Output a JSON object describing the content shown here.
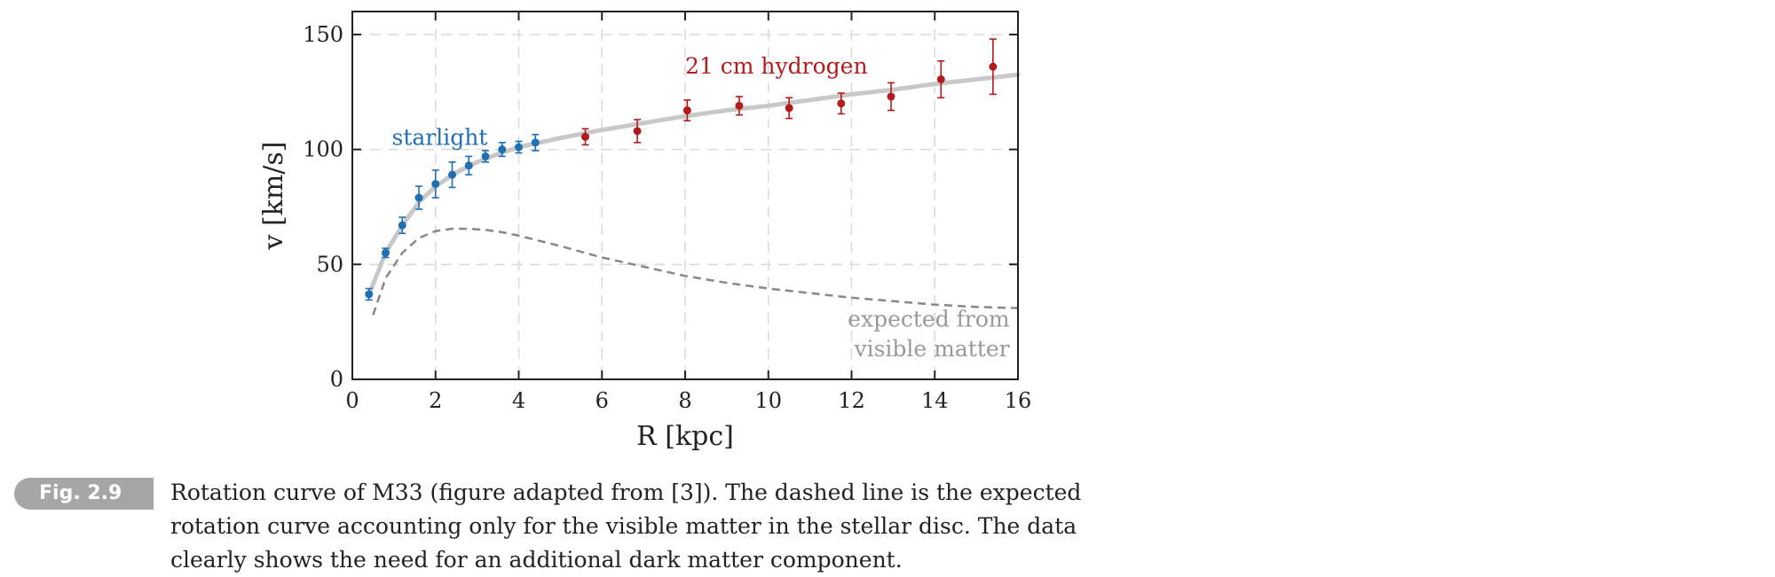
{
  "chart_data": {
    "type": "scatter",
    "xlabel": "R [kpc]",
    "ylabel": "v [km/s]",
    "xlim": [
      0,
      16
    ],
    "ylim": [
      0,
      160
    ],
    "xticks": [
      0,
      2,
      4,
      6,
      8,
      10,
      12,
      14,
      16
    ],
    "yticks": [
      0,
      50,
      100,
      150
    ],
    "grid": true,
    "series": [
      {
        "name": "starlight",
        "color": "#1f6fb2",
        "points": [
          {
            "x": 0.4,
            "y": 37,
            "err": 2.5
          },
          {
            "x": 0.8,
            "y": 55,
            "err": 2
          },
          {
            "x": 1.2,
            "y": 67,
            "err": 3.5
          },
          {
            "x": 1.6,
            "y": 79,
            "err": 5
          },
          {
            "x": 2.0,
            "y": 85,
            "err": 6
          },
          {
            "x": 2.4,
            "y": 89,
            "err": 5.5
          },
          {
            "x": 2.8,
            "y": 93,
            "err": 4
          },
          {
            "x": 3.2,
            "y": 97,
            "err": 2.5
          },
          {
            "x": 3.6,
            "y": 100,
            "err": 3
          },
          {
            "x": 4.0,
            "y": 101,
            "err": 2.5
          },
          {
            "x": 4.4,
            "y": 103,
            "err": 3.5
          }
        ]
      },
      {
        "name": "21 cm hydrogen",
        "color": "#b31b1b",
        "points": [
          {
            "x": 5.6,
            "y": 105.5,
            "err": 3.5
          },
          {
            "x": 6.85,
            "y": 108,
            "err": 5
          },
          {
            "x": 8.05,
            "y": 117,
            "err": 4.5
          },
          {
            "x": 9.3,
            "y": 119,
            "err": 4
          },
          {
            "x": 10.5,
            "y": 118,
            "err": 4.5
          },
          {
            "x": 11.75,
            "y": 120,
            "err": 4.5
          },
          {
            "x": 12.95,
            "y": 123,
            "err": 6
          },
          {
            "x": 14.15,
            "y": 130.5,
            "err": 8
          },
          {
            "x": 15.4,
            "y": 136,
            "err": 12
          }
        ]
      }
    ],
    "fit_curve": {
      "color": "#c8c8c8",
      "x": [
        0.4,
        0.8,
        1.2,
        1.6,
        2.0,
        2.5,
        3.0,
        3.5,
        4.0,
        5.0,
        6.0,
        7.0,
        8.0,
        9.0,
        10.0,
        11.0,
        12.0,
        13.0,
        14.0,
        15.0,
        16.0
      ],
      "y": [
        37,
        55,
        67,
        77,
        84,
        90,
        94.5,
        98,
        101,
        105,
        108.5,
        111.5,
        114.5,
        117,
        119,
        121.5,
        124,
        126,
        128.5,
        130.5,
        132.5
      ]
    },
    "visible_matter_curve": {
      "color": "#888888",
      "x": [
        0.5,
        0.8,
        1.2,
        1.6,
        2.0,
        2.4,
        2.8,
        3.2,
        3.6,
        4.0,
        5.0,
        6.0,
        7.0,
        8.0,
        9.0,
        10.0,
        11.0,
        12.0,
        13.0,
        14.0,
        15.0,
        16.0
      ],
      "y": [
        28,
        44,
        55,
        61.5,
        64.5,
        65.5,
        65.5,
        65,
        64,
        62.5,
        58,
        53,
        49,
        45,
        42,
        39.5,
        37.5,
        35.5,
        34,
        32.5,
        31.5,
        31
      ]
    },
    "annotations": {
      "starlight": "starlight",
      "hydrogen": "21 cm hydrogen",
      "expected_line1": "expected from",
      "expected_line2": "visible matter"
    }
  },
  "caption": {
    "badge": "Fig. 2.9",
    "text": "Rotation curve of M33 (figure adapted from [3]). The dashed line is the expected rotation curve accounting only for the visible matter in the stellar disc. The data clearly shows the need for an additional dark matter component."
  }
}
